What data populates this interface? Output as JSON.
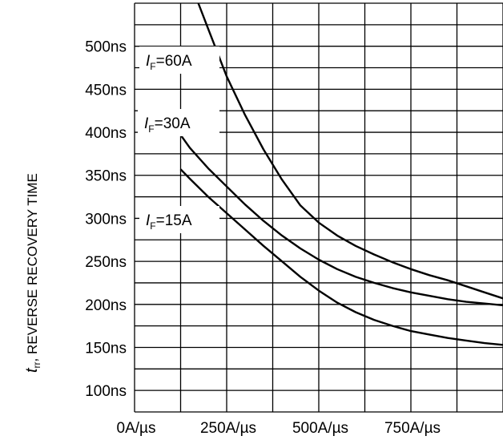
{
  "chart_data": {
    "type": "line",
    "xlabel": "",
    "ylabel": {
      "symbol": "t",
      "subscript": "rr",
      "text": ", REVERSE RECOVERY TIME"
    },
    "xlim": [
      0,
      1000
    ],
    "ylim": [
      75,
      550
    ],
    "grid": true,
    "x_ticks": [
      {
        "value": 0,
        "label": "0A/µs"
      },
      {
        "value": 250,
        "label": "250A/µs"
      },
      {
        "value": 500,
        "label": "500A/µs"
      },
      {
        "value": 750,
        "label": "750A/µs"
      }
    ],
    "y_ticks": [
      {
        "value": 100,
        "label": "100ns"
      },
      {
        "value": 150,
        "label": "150ns"
      },
      {
        "value": 200,
        "label": "200ns"
      },
      {
        "value": 250,
        "label": "250ns"
      },
      {
        "value": 300,
        "label": "300ns"
      },
      {
        "value": 350,
        "label": "350ns"
      },
      {
        "value": 400,
        "label": "400ns"
      },
      {
        "value": 450,
        "label": "450ns"
      },
      {
        "value": 500,
        "label": "500ns"
      }
    ],
    "series": [
      {
        "name": "IF=60A",
        "label_parts": {
          "symbol": "I",
          "subscript": "F",
          "rest": "=60A"
        },
        "x": [
          173,
          200,
          250,
          300,
          350,
          400,
          450,
          500,
          550,
          600,
          650,
          700,
          750,
          800,
          850,
          900,
          950,
          1000
        ],
        "y": [
          550,
          520,
          465,
          420,
          380,
          345,
          315,
          295,
          280,
          268,
          258,
          249,
          241,
          234,
          228,
          221,
          214,
          207
        ]
      },
      {
        "name": "IF=30A",
        "label_parts": {
          "symbol": "I",
          "subscript": "F",
          "rest": "=30A"
        },
        "x": [
          125,
          150,
          200,
          250,
          300,
          350,
          400,
          450,
          500,
          550,
          600,
          650,
          700,
          750,
          800,
          850,
          900,
          950,
          1000
        ],
        "y": [
          397,
          382,
          358,
          337,
          316,
          297,
          280,
          265,
          252,
          241,
          232,
          225,
          219,
          214,
          210,
          206,
          203,
          201,
          199
        ]
      },
      {
        "name": "IF=15A",
        "label_parts": {
          "symbol": "I",
          "subscript": "F",
          "rest": "=15A"
        },
        "x": [
          125,
          150,
          200,
          250,
          300,
          350,
          400,
          450,
          500,
          550,
          600,
          650,
          700,
          750,
          800,
          850,
          900,
          950,
          1000
        ],
        "y": [
          357,
          346,
          325,
          306,
          287,
          268,
          250,
          232,
          216,
          202,
          191,
          182,
          175,
          169,
          165,
          161,
          158,
          155,
          153
        ]
      }
    ]
  }
}
